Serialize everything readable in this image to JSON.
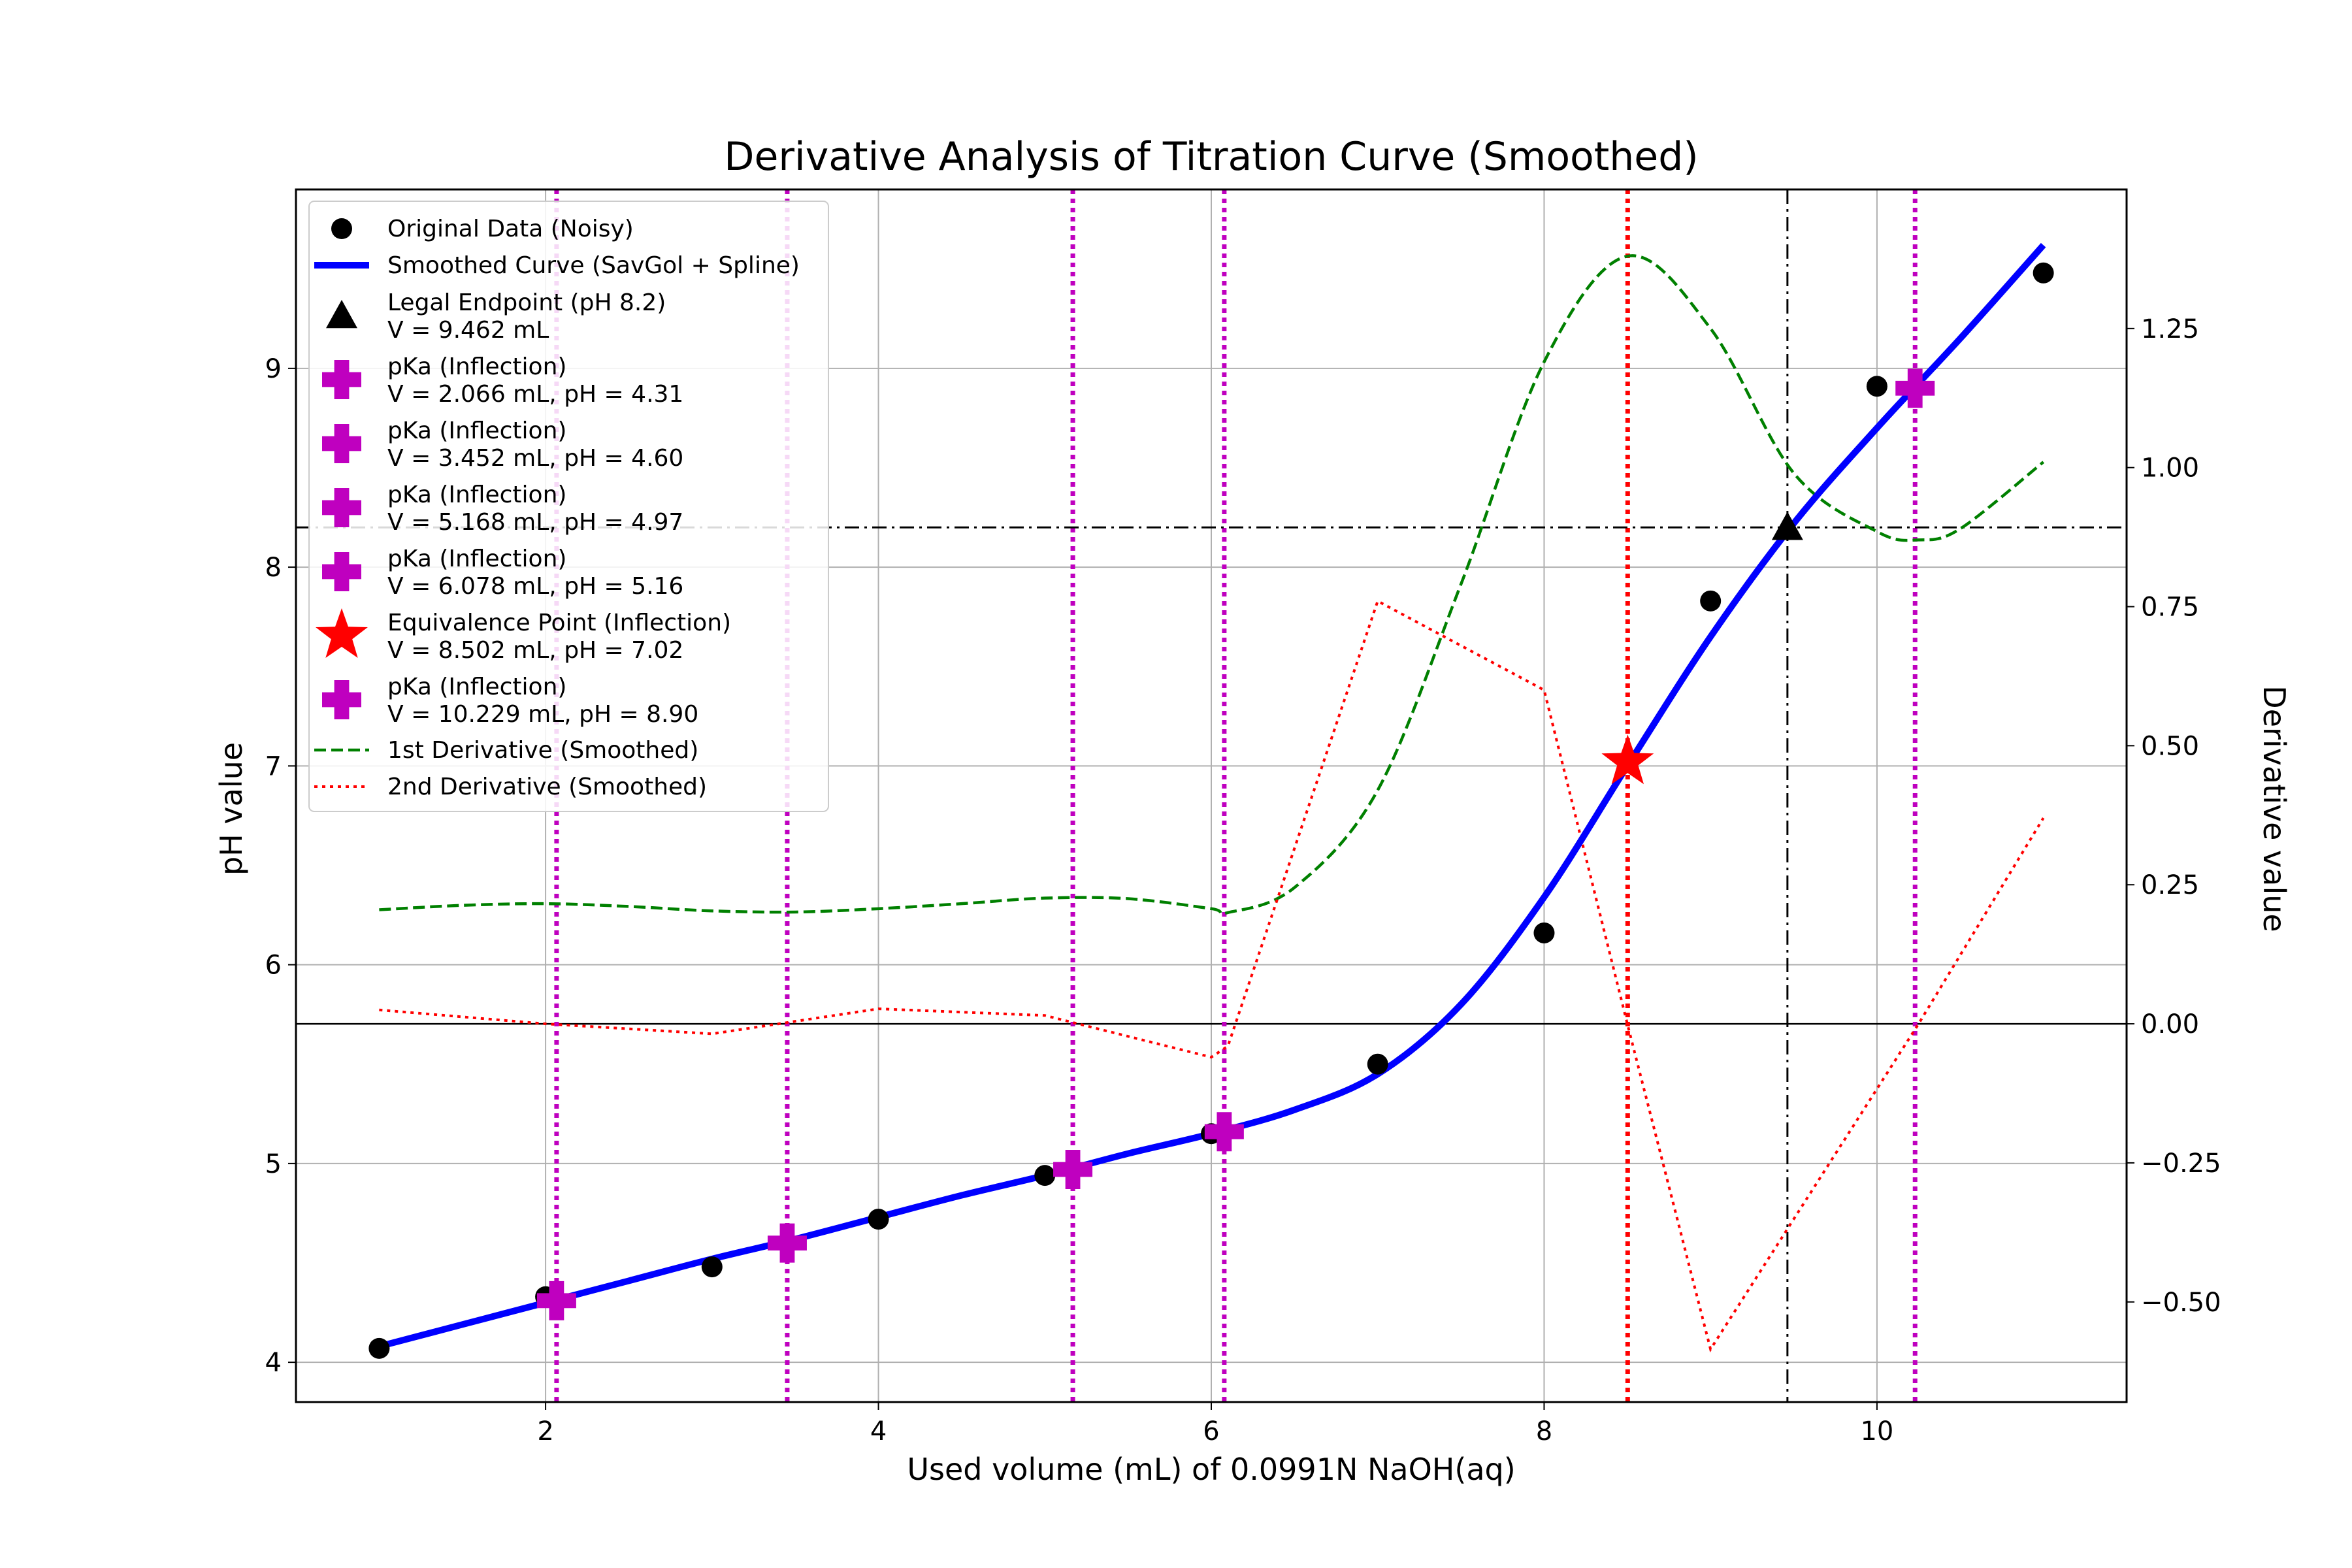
{
  "chart_data": {
    "type": "line",
    "title": "Derivative Analysis of Titration Curve (Smoothed)",
    "xlabel": "Used volume (mL) of 0.0991N NaOH(aq)",
    "ylabel": "pH value",
    "y2label": "Derivative value",
    "xlim": [
      0.5,
      11.5
    ],
    "ylim": [
      3.8,
      9.9
    ],
    "y2lim": [
      -0.68,
      1.5
    ],
    "xticks": [
      2,
      4,
      6,
      8,
      10
    ],
    "yticks": [
      4,
      5,
      6,
      7,
      8,
      9
    ],
    "y2ticks": [
      -0.5,
      -0.25,
      0.0,
      0.25,
      0.5,
      0.75,
      1.0,
      1.25
    ],
    "y2tick_labels": [
      "−0.50",
      "−0.25",
      "0.00",
      "0.25",
      "0.50",
      "0.75",
      "1.00",
      "1.25"
    ],
    "grid": true,
    "legend_position": "upper-left",
    "colors": {
      "original": "#000000",
      "smoothed": "#0000ff",
      "endpoint": "#000000",
      "pka": "#bf00bf",
      "equivalence": "#ff0000",
      "first_derivative": "#008000",
      "second_derivative": "#ff0000"
    },
    "original_data": {
      "name": "Original Data (Noisy)",
      "x": [
        1,
        2,
        3,
        4,
        5,
        6,
        7,
        8,
        9,
        10,
        11
      ],
      "y": [
        4.07,
        4.33,
        4.48,
        4.72,
        4.94,
        5.15,
        5.5,
        6.16,
        7.83,
        8.91,
        9.48
      ]
    },
    "smoothed_curve": {
      "name": "Smoothed Curve (SavGol + Spline)",
      "x": [
        1.0,
        1.5,
        2.0,
        2.5,
        3.0,
        3.5,
        4.0,
        4.5,
        5.0,
        5.5,
        6.0,
        6.5,
        7.0,
        7.5,
        8.0,
        8.5,
        9.0,
        9.5,
        10.0,
        10.5,
        11.0
      ],
      "y": [
        4.08,
        4.19,
        4.3,
        4.41,
        4.52,
        4.62,
        4.73,
        4.84,
        4.94,
        5.05,
        5.15,
        5.27,
        5.45,
        5.8,
        6.34,
        7.0,
        7.65,
        8.22,
        8.7,
        9.15,
        9.62
      ]
    },
    "legal_endpoint": {
      "name": "Legal Endpoint (pH 8.2)",
      "label": "V = 9.462 mL",
      "x": 9.462,
      "y": 8.2
    },
    "inflections": [
      {
        "name": "pKa (Inflection)",
        "label": "V = 2.066 mL, pH = 4.31",
        "x": 2.066,
        "y": 4.31,
        "kind": "pka"
      },
      {
        "name": "pKa (Inflection)",
        "label": "V = 3.452 mL, pH = 4.60",
        "x": 3.452,
        "y": 4.6,
        "kind": "pka"
      },
      {
        "name": "pKa (Inflection)",
        "label": "V = 5.168 mL, pH = 4.97",
        "x": 5.168,
        "y": 4.97,
        "kind": "pka"
      },
      {
        "name": "pKa (Inflection)",
        "label": "V = 6.078 mL, pH = 5.16",
        "x": 6.078,
        "y": 5.16,
        "kind": "pka"
      },
      {
        "name": "Equivalence Point (Inflection)",
        "label": "V = 8.502 mL, pH = 7.02",
        "x": 8.502,
        "y": 7.02,
        "kind": "equivalence"
      },
      {
        "name": "pKa (Inflection)",
        "label": "V = 10.229 mL, pH = 8.90",
        "x": 10.229,
        "y": 8.9,
        "kind": "pka"
      }
    ],
    "first_derivative": {
      "name": "1st Derivative (Smoothed)",
      "x": [
        1.0,
        1.5,
        2.0,
        2.5,
        3.0,
        3.5,
        4.0,
        4.5,
        5.0,
        5.5,
        6.0,
        6.1,
        6.5,
        7.0,
        7.5,
        8.0,
        8.5,
        9.0,
        9.5,
        10.0,
        10.25,
        10.5,
        11.0
      ],
      "y": [
        0.205,
        0.213,
        0.216,
        0.211,
        0.203,
        0.201,
        0.207,
        0.216,
        0.226,
        0.225,
        0.207,
        0.2,
        0.245,
        0.42,
        0.79,
        1.19,
        1.38,
        1.25,
        0.99,
        0.885,
        0.87,
        0.89,
        1.01
      ]
    },
    "second_derivative": {
      "name": "2nd Derivative (Smoothed)",
      "x": [
        1.0,
        2.0,
        3.0,
        4.0,
        5.0,
        6.0,
        6.1,
        7.0,
        8.0,
        8.5,
        9.0,
        10.25,
        11.0
      ],
      "y": [
        0.025,
        0.0,
        -0.018,
        0.027,
        0.015,
        -0.06,
        -0.04,
        0.76,
        0.6,
        0.0,
        -0.585,
        0.0,
        0.37
      ]
    }
  }
}
